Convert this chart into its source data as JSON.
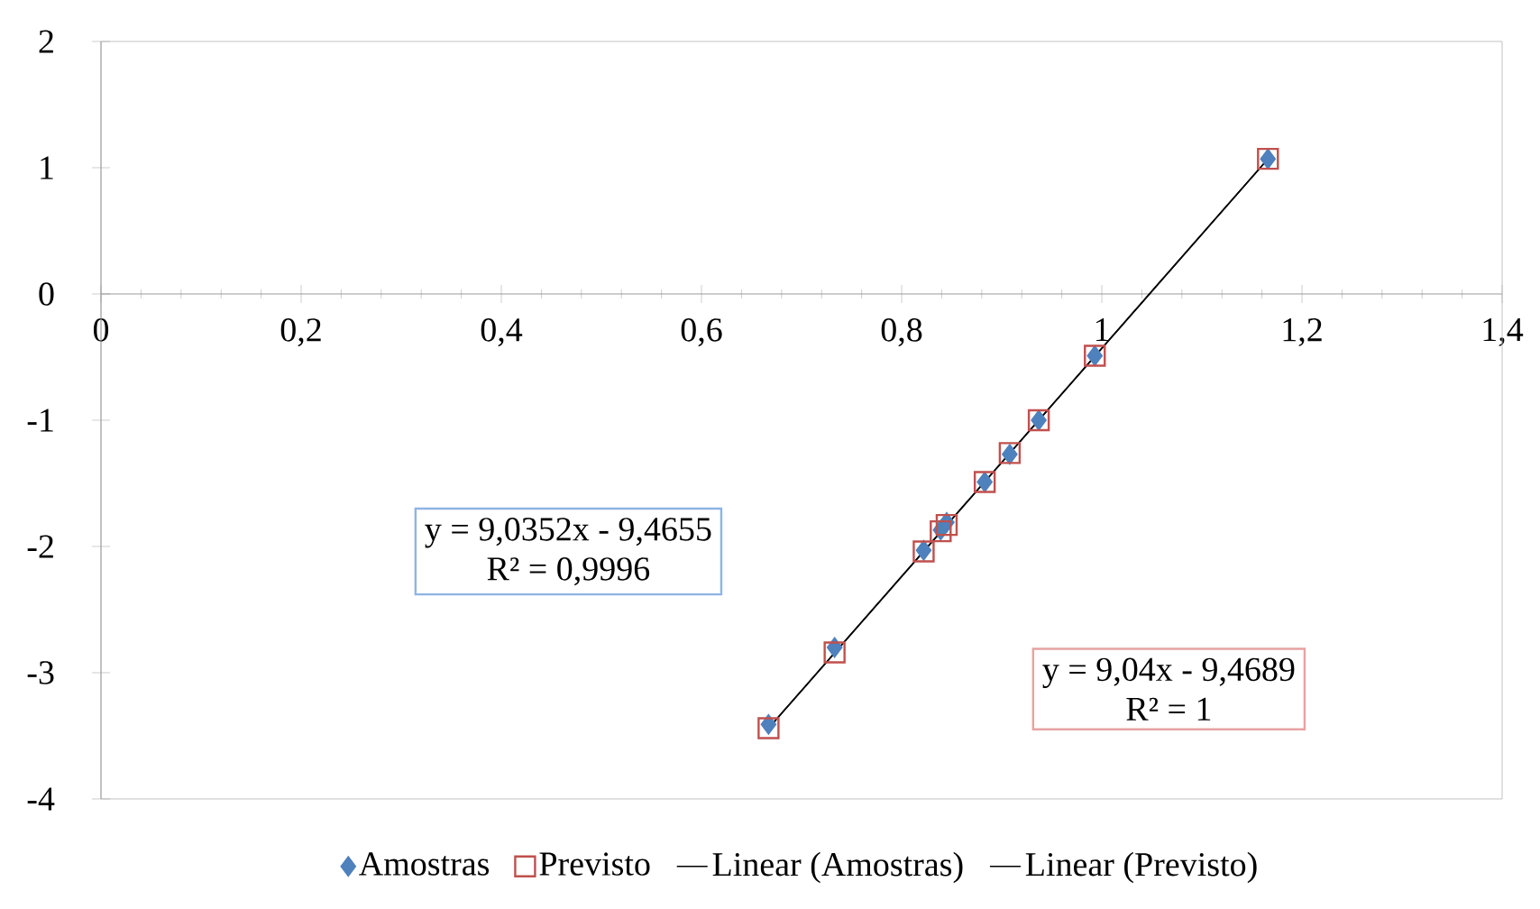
{
  "chart_data": {
    "type": "scatter",
    "xlim": [
      0,
      1.4
    ],
    "ylim": [
      -4,
      2
    ],
    "xticks": [
      0,
      {
        "value": 0.2,
        "label": "0,2"
      },
      {
        "value": 0.4,
        "label": "0,4"
      },
      {
        "value": 0.6,
        "label": "0,6"
      },
      {
        "value": 0.8,
        "label": "0,8"
      },
      1,
      {
        "value": 1.2,
        "label": "1,2"
      },
      {
        "value": 1.4,
        "label": "1,4"
      }
    ],
    "yticks": [
      -4,
      -3,
      -2,
      -1,
      0,
      1,
      2
    ],
    "grid": false,
    "legend": "bottom",
    "annotations": [
      "y = 9,0352x - 9,4655",
      "R² = 0,9996",
      "y = 9,04x - 9,4689",
      "R² = 1"
    ],
    "series": [
      {
        "name": "Amostras",
        "marker": "diamond",
        "color": "#4f81bd",
        "x": [
          0.667,
          0.733,
          0.822,
          0.839,
          0.845,
          0.883,
          0.908,
          0.937,
          0.993,
          1.166
        ],
        "values": [
          -3.41,
          -2.8,
          -2.03,
          -1.87,
          -1.81,
          -1.49,
          -1.27,
          -1.0,
          -0.49,
          1.07
        ]
      },
      {
        "name": "Previsto",
        "marker": "square",
        "color": "#c0504d",
        "x": [
          0.667,
          0.733,
          0.822,
          0.839,
          0.845,
          0.883,
          0.908,
          0.937,
          0.993,
          1.166
        ],
        "values": [
          -3.44,
          -2.84,
          -2.04,
          -1.88,
          -1.83,
          -1.49,
          -1.26,
          -1.0,
          -0.49,
          1.07
        ]
      },
      {
        "name": "Linear (Amostras)",
        "type": "line",
        "marker": "none",
        "color": "#000000",
        "x": [
          0.667,
          1.166
        ],
        "values": [
          -3.44,
          1.07
        ]
      },
      {
        "name": "Linear (Previsto)",
        "type": "line",
        "marker": "none",
        "color": "#000000",
        "x": [
          0.667,
          1.166
        ],
        "values": [
          -3.44,
          1.07
        ]
      }
    ]
  }
}
